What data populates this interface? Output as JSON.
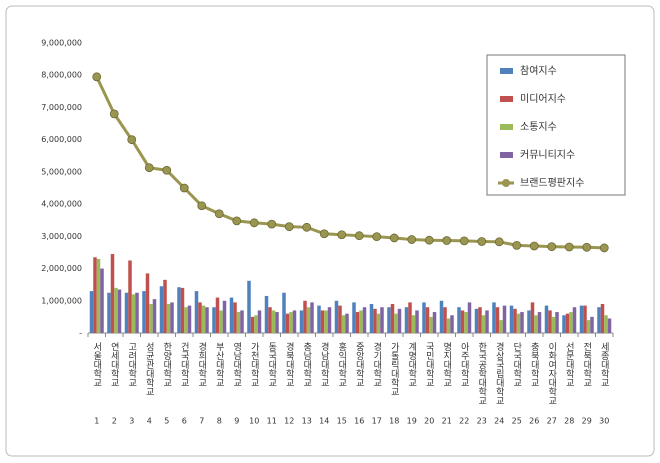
{
  "chart_data": {
    "type": "bar",
    "categories": [
      "서울대학교",
      "연세대학교",
      "고려대학교",
      "성균관대학교",
      "한양대학교",
      "건국대학교",
      "경희대학교",
      "부산대학교",
      "영남대학교",
      "가천대학교",
      "동국대학교",
      "경북대학교",
      "충남대학교",
      "경남대학교",
      "홍익대학교",
      "중앙대학교",
      "경기대학교",
      "가톨릭대학교",
      "계명대학교",
      "국민대학교",
      "명지대학교",
      "아주대학교",
      "한국공학대학교",
      "경상국립대학교",
      "단국대학교",
      "충북대학교",
      "이화여자대학교",
      "선문대학교",
      "전북대학교",
      "세종대학교"
    ],
    "category_numbers": [
      1,
      2,
      3,
      4,
      5,
      6,
      7,
      8,
      9,
      10,
      11,
      12,
      13,
      14,
      15,
      16,
      17,
      18,
      19,
      20,
      21,
      22,
      23,
      24,
      25,
      26,
      27,
      28,
      29,
      30
    ],
    "series": [
      {
        "name": "참여지수",
        "color": "#4f81bd",
        "type": "bar",
        "values": [
          1300000,
          1250000,
          1250000,
          1300000,
          1450000,
          1420000,
          1300000,
          800000,
          1100000,
          1620000,
          1150000,
          1250000,
          700000,
          850000,
          1000000,
          950000,
          900000,
          800000,
          800000,
          950000,
          1000000,
          800000,
          750000,
          950000,
          850000,
          700000,
          850000,
          550000,
          850000,
          800000
        ]
      },
      {
        "name": "미디어지수",
        "color": "#c0504d",
        "type": "bar",
        "values": [
          2350000,
          2450000,
          2250000,
          1850000,
          1650000,
          1400000,
          950000,
          1100000,
          950000,
          500000,
          800000,
          600000,
          1000000,
          700000,
          850000,
          650000,
          750000,
          900000,
          950000,
          800000,
          800000,
          700000,
          800000,
          800000,
          750000,
          950000,
          700000,
          600000,
          850000,
          900000
        ]
      },
      {
        "name": "소통지수",
        "color": "#9bbb59",
        "type": "bar",
        "values": [
          2300000,
          1400000,
          1200000,
          900000,
          900000,
          800000,
          850000,
          700000,
          650000,
          550000,
          700000,
          650000,
          800000,
          700000,
          550000,
          700000,
          600000,
          600000,
          550000,
          500000,
          450000,
          650000,
          550000,
          400000,
          600000,
          550000,
          500000,
          650000,
          400000,
          550000
        ]
      },
      {
        "name": "커뮤니티지수",
        "color": "#8064a2",
        "type": "bar",
        "values": [
          2000000,
          1350000,
          1250000,
          1050000,
          950000,
          850000,
          800000,
          1000000,
          700000,
          700000,
          650000,
          700000,
          950000,
          800000,
          600000,
          800000,
          800000,
          750000,
          700000,
          650000,
          550000,
          950000,
          700000,
          850000,
          650000,
          650000,
          650000,
          800000,
          500000,
          450000
        ]
      },
      {
        "name": "브랜드평판지수",
        "color": "#9a9650",
        "type": "line",
        "values": [
          7950000,
          6800000,
          6000000,
          5130000,
          5050000,
          4500000,
          3950000,
          3700000,
          3480000,
          3420000,
          3380000,
          3300000,
          3280000,
          3080000,
          3050000,
          3020000,
          2990000,
          2950000,
          2900000,
          2880000,
          2870000,
          2860000,
          2840000,
          2830000,
          2720000,
          2700000,
          2680000,
          2670000,
          2660000,
          2640000
        ]
      }
    ],
    "ylim": [
      0,
      9000000
    ],
    "yticks": [
      {
        "value": 0,
        "label": "-"
      },
      {
        "value": 1000000,
        "label": "1,000,000"
      },
      {
        "value": 2000000,
        "label": "2,000,000"
      },
      {
        "value": 3000000,
        "label": "3,000,000"
      },
      {
        "value": 4000000,
        "label": "4,000,000"
      },
      {
        "value": 5000000,
        "label": "5,000,000"
      },
      {
        "value": 6000000,
        "label": "6,000,000"
      },
      {
        "value": 7000000,
        "label": "7,000,000"
      },
      {
        "value": 8000000,
        "label": "8,000,000"
      },
      {
        "value": 9000000,
        "label": "9,000,000"
      }
    ],
    "grid": false,
    "legend": "top-right"
  }
}
